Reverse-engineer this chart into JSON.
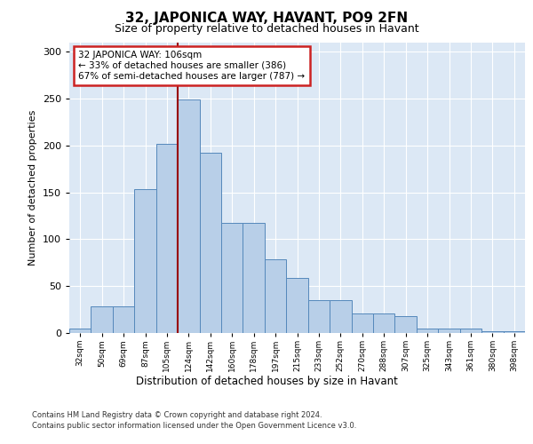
{
  "title": "32, JAPONICA WAY, HAVANT, PO9 2FN",
  "subtitle": "Size of property relative to detached houses in Havant",
  "xlabel": "Distribution of detached houses by size in Havant",
  "ylabel": "Number of detached properties",
  "categories": [
    "32sqm",
    "50sqm",
    "69sqm",
    "87sqm",
    "105sqm",
    "124sqm",
    "142sqm",
    "160sqm",
    "178sqm",
    "197sqm",
    "215sqm",
    "233sqm",
    "252sqm",
    "270sqm",
    "288sqm",
    "307sqm",
    "325sqm",
    "343sqm",
    "361sqm",
    "380sqm",
    "398sqm"
  ],
  "values": [
    5,
    28,
    28,
    153,
    202,
    249,
    192,
    117,
    117,
    79,
    59,
    35,
    35,
    21,
    21,
    18,
    5,
    5,
    5,
    2,
    2
  ],
  "bar_color": "#b8cfe8",
  "bar_edge_color": "#5588bb",
  "highlight_line_color": "#990000",
  "annotation_line1": "32 JAPONICA WAY: 106sqm",
  "annotation_line2": "← 33% of detached houses are smaller (386)",
  "annotation_line3": "67% of semi-detached houses are larger (787) →",
  "annotation_box_edge_color": "#cc2222",
  "ylim": [
    0,
    310
  ],
  "yticks": [
    0,
    50,
    100,
    150,
    200,
    250,
    300
  ],
  "background_color": "#dce8f5",
  "footer_line1": "Contains HM Land Registry data © Crown copyright and database right 2024.",
  "footer_line2": "Contains public sector information licensed under the Open Government Licence v3.0."
}
